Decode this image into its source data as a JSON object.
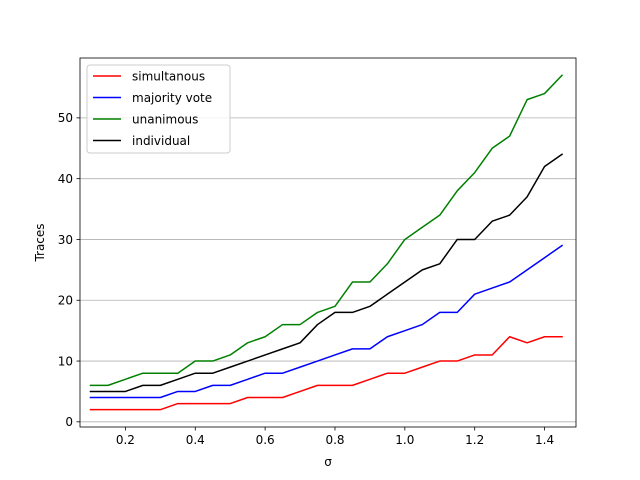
{
  "chart_data": {
    "type": "line",
    "title": "",
    "xlabel": "σ",
    "ylabel": "Traces",
    "xlim": [
      0.07,
      1.49
    ],
    "ylim": [
      -0.85,
      59.85
    ],
    "xticks": [
      0.2,
      0.4,
      0.6,
      0.8,
      1.0,
      1.2,
      1.4
    ],
    "xtick_labels": [
      "0.2",
      "0.4",
      "0.6",
      "0.8",
      "1.0",
      "1.2",
      "1.4"
    ],
    "yticks": [
      0,
      10,
      20,
      30,
      40,
      50
    ],
    "ytick_labels": [
      "0",
      "10",
      "20",
      "30",
      "40",
      "50"
    ],
    "grid": "y-axis horizontal lines",
    "legend_placement": "top-left",
    "x": [
      0.1,
      0.15,
      0.2,
      0.25,
      0.3,
      0.35,
      0.4,
      0.45,
      0.5,
      0.55,
      0.6,
      0.65,
      0.7,
      0.75,
      0.8,
      0.85,
      0.9,
      0.95,
      1.0,
      1.05,
      1.1,
      1.15,
      1.2,
      1.25,
      1.3,
      1.35,
      1.4,
      1.45
    ],
    "series": [
      {
        "name": "simultanous",
        "color": "#ff0000",
        "values": [
          2,
          2,
          2,
          2,
          2,
          3,
          3,
          3,
          3,
          4,
          4,
          4,
          5,
          6,
          6,
          6,
          7,
          8,
          8,
          9,
          10,
          10,
          11,
          11,
          14,
          13,
          14,
          14
        ]
      },
      {
        "name": "majority vote",
        "color": "#0000ff",
        "values": [
          4,
          4,
          4,
          4,
          4,
          5,
          5,
          6,
          6,
          7,
          8,
          8,
          9,
          10,
          11,
          12,
          12,
          14,
          15,
          16,
          18,
          18,
          21,
          22,
          23,
          25,
          27,
          29
        ]
      },
      {
        "name": "unanimous",
        "color": "#008000",
        "values": [
          6,
          6,
          7,
          8,
          8,
          8,
          10,
          10,
          11,
          13,
          14,
          16,
          16,
          18,
          19,
          23,
          23,
          26,
          30,
          32,
          34,
          38,
          41,
          45,
          47,
          53,
          54,
          57
        ]
      },
      {
        "name": "individual",
        "color": "#000000",
        "values": [
          5,
          5,
          5,
          6,
          6,
          7,
          8,
          8,
          9,
          10,
          11,
          12,
          13,
          16,
          18,
          18,
          19,
          21,
          23,
          25,
          26,
          30,
          30,
          33,
          34,
          37,
          42,
          44
        ]
      }
    ]
  }
}
